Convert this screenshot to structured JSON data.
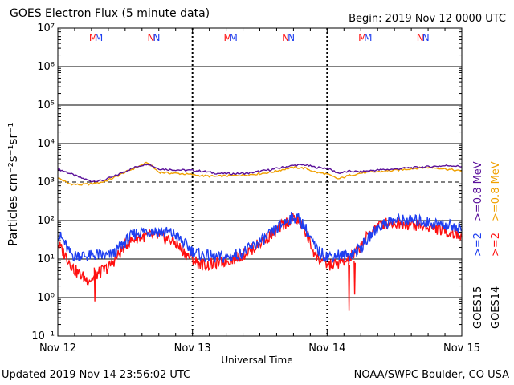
{
  "header": {
    "title": "GOES Electron Flux (5 minute data)",
    "begin": "Begin: 2019 Nov 12 0000 UTC"
  },
  "footer": {
    "updated": "Updated 2019 Nov 14 23:56:02 UTC",
    "credit": "NOAA/SWPC Boulder, CO USA"
  },
  "colors": {
    "goes15_ge2": "#1f3ff0",
    "goes14_ge2": "#ff1010",
    "goes15_ge08": "#5a109a",
    "goes14_ge08": "#f0a000",
    "threshold": "#000000"
  },
  "chart_data": {
    "type": "line",
    "xlabel": "Universal Time",
    "ylabel": "Particles cm⁻²s⁻¹sr⁻¹",
    "y_scale": "log",
    "ylim": [
      0.1,
      10000000
    ],
    "y_ticks": [
      {
        "value": 0.1,
        "label": "10⁻¹"
      },
      {
        "value": 1,
        "label": "10⁰"
      },
      {
        "value": 10,
        "label": "10¹"
      },
      {
        "value": 100,
        "label": "10²"
      },
      {
        "value": 1000,
        "label": "10³"
      },
      {
        "value": 10000,
        "label": "10⁴"
      },
      {
        "value": 100000,
        "label": "10⁵"
      },
      {
        "value": 1000000,
        "label": "10⁶"
      },
      {
        "value": 10000000,
        "label": "10⁷"
      }
    ],
    "x_ticks": [
      "Nov 12",
      "Nov 13",
      "Nov 14",
      "Nov 15"
    ],
    "xlim_hours": [
      0,
      72
    ],
    "threshold": 1000,
    "markers": [
      {
        "label": "M",
        "hour": 6.3,
        "color": "#ff1010"
      },
      {
        "label": "M",
        "hour": 7.3,
        "color": "#1f3ff0"
      },
      {
        "label": "N",
        "hour": 16.6,
        "color": "#ff1010"
      },
      {
        "label": "N",
        "hour": 17.6,
        "color": "#1f3ff0"
      },
      {
        "label": "M",
        "hour": 30.3,
        "color": "#ff1010"
      },
      {
        "label": "M",
        "hour": 31.3,
        "color": "#1f3ff0"
      },
      {
        "label": "N",
        "hour": 40.6,
        "color": "#ff1010"
      },
      {
        "label": "N",
        "hour": 41.6,
        "color": "#1f3ff0"
      },
      {
        "label": "M",
        "hour": 54.3,
        "color": "#ff1010"
      },
      {
        "label": "M",
        "hour": 55.3,
        "color": "#1f3ff0"
      },
      {
        "label": "N",
        "hour": 64.6,
        "color": "#ff1010"
      },
      {
        "label": "N",
        "hour": 65.6,
        "color": "#1f3ff0"
      }
    ],
    "legend": [
      {
        "text": ">=2",
        "color": "#1f3ff0"
      },
      {
        "text": ">=0.8 MeV",
        "color": "#5a109a"
      },
      {
        "text": ">=2",
        "color": "#ff1010"
      },
      {
        "text": ">=0.8 MeV",
        "color": "#f0a000"
      },
      {
        "text": "GOES15",
        "color": "#000000"
      },
      {
        "text": "GOES14",
        "color": "#000000"
      }
    ],
    "series": [
      {
        "name": "GOES15 >=0.8 MeV",
        "color": "#5a109a",
        "x": [
          0,
          2,
          4,
          6,
          8,
          10,
          12,
          14,
          16,
          18,
          20,
          22,
          24,
          26,
          28,
          30,
          32,
          34,
          36,
          38,
          40,
          42,
          44,
          46,
          48,
          50,
          52,
          54,
          56,
          58,
          60,
          62,
          64,
          66,
          68,
          70,
          72
        ],
        "y": [
          2200,
          1700,
          1300,
          1050,
          1100,
          1400,
          1900,
          2500,
          3000,
          2200,
          2100,
          2050,
          2000,
          1900,
          1700,
          1650,
          1650,
          1700,
          1900,
          2100,
          2400,
          2700,
          2800,
          2400,
          2300,
          1700,
          1900,
          1850,
          2000,
          2100,
          2150,
          2300,
          2400,
          2500,
          2600,
          2700,
          2500
        ]
      },
      {
        "name": "GOES14 >=0.8 MeV",
        "color": "#f0a000",
        "x": [
          0,
          2,
          4,
          6,
          8,
          10,
          12,
          14,
          16,
          18,
          20,
          22,
          24,
          26,
          28,
          30,
          32,
          34,
          36,
          38,
          40,
          42,
          44,
          46,
          48,
          50,
          52,
          54,
          56,
          58,
          60,
          62,
          64,
          66,
          68,
          70,
          72
        ],
        "y": [
          1300,
          900,
          850,
          900,
          1000,
          1300,
          1800,
          2400,
          3200,
          1800,
          1700,
          1650,
          1550,
          1450,
          1400,
          1450,
          1500,
          1550,
          1650,
          1800,
          2100,
          2400,
          2300,
          1800,
          1600,
          1200,
          1500,
          1700,
          1800,
          1900,
          2000,
          2150,
          2300,
          2400,
          2300,
          2100,
          1900
        ]
      },
      {
        "name": "GOES15 >=2",
        "color": "#1f3ff0",
        "x": [
          0,
          1,
          2,
          3,
          4,
          5,
          6,
          7,
          8,
          9,
          10,
          11,
          12,
          13,
          14,
          15,
          16,
          17,
          18,
          19,
          20,
          21,
          22,
          23,
          24,
          25,
          26,
          27,
          28,
          29,
          30,
          31,
          32,
          33,
          34,
          35,
          36,
          37,
          38,
          39,
          40,
          41,
          42,
          43,
          44,
          45,
          46,
          47,
          48,
          49,
          50,
          51,
          52,
          53,
          54,
          55,
          56,
          57,
          58,
          59,
          60,
          61,
          62,
          63,
          64,
          65,
          66,
          67,
          68,
          69,
          70,
          71,
          72
        ],
        "y": [
          45,
          30,
          15,
          12,
          13,
          12,
          12,
          13,
          12,
          12,
          14,
          20,
          28,
          38,
          48,
          52,
          55,
          54,
          52,
          50,
          48,
          42,
          30,
          22,
          16,
          14,
          12,
          12,
          11,
          11,
          11,
          12,
          13,
          15,
          18,
          22,
          28,
          35,
          45,
          60,
          80,
          105,
          125,
          110,
          70,
          35,
          18,
          14,
          12,
          12,
          13,
          12,
          13,
          15,
          20,
          30,
          45,
          65,
          80,
          92,
          100,
          102,
          100,
          100,
          98,
          95,
          90,
          85,
          82,
          78,
          75,
          70,
          60
        ]
      },
      {
        "name": "GOES14 >=2",
        "color": "#ff1010",
        "x": [
          0,
          1,
          2,
          3,
          4,
          5,
          6,
          7,
          8,
          9,
          10,
          11,
          12,
          13,
          14,
          15,
          16,
          17,
          18,
          19,
          20,
          21,
          22,
          23,
          24,
          25,
          26,
          27,
          28,
          29,
          30,
          31,
          32,
          33,
          34,
          35,
          36,
          37,
          38,
          39,
          40,
          41,
          42,
          43,
          44,
          45,
          46,
          47,
          48,
          49,
          50,
          51,
          52,
          53,
          54,
          55,
          56,
          57,
          58,
          59,
          60,
          61,
          62,
          63,
          64,
          65,
          66,
          67,
          68,
          69,
          70,
          71,
          72
        ],
        "y": [
          25,
          15,
          9,
          5,
          4,
          3,
          3,
          4,
          5,
          6,
          9,
          14,
          22,
          30,
          36,
          38,
          40,
          40,
          38,
          35,
          32,
          26,
          18,
          13,
          10,
          8,
          7,
          7,
          8,
          8,
          9,
          10,
          11,
          13,
          16,
          20,
          26,
          33,
          42,
          55,
          75,
          95,
          115,
          95,
          55,
          25,
          12,
          9,
          7,
          7,
          8,
          8,
          10,
          14,
          22,
          35,
          55,
          72,
          82,
          88,
          88,
          85,
          82,
          78,
          75,
          70,
          68,
          64,
          58,
          52,
          48,
          44,
          38
        ]
      }
    ],
    "dips": [
      {
        "series": 3,
        "x": [
          6.5,
          6.6,
          6.7
        ],
        "y": [
          6,
          0.8,
          5
        ]
      },
      {
        "series": 3,
        "x": [
          51.8,
          51.9,
          52.0
        ],
        "y": [
          8,
          0.45,
          7
        ]
      },
      {
        "series": 3,
        "x": [
          52.8,
          52.9,
          53.0
        ],
        "y": [
          9,
          1.2,
          8
        ]
      }
    ]
  }
}
